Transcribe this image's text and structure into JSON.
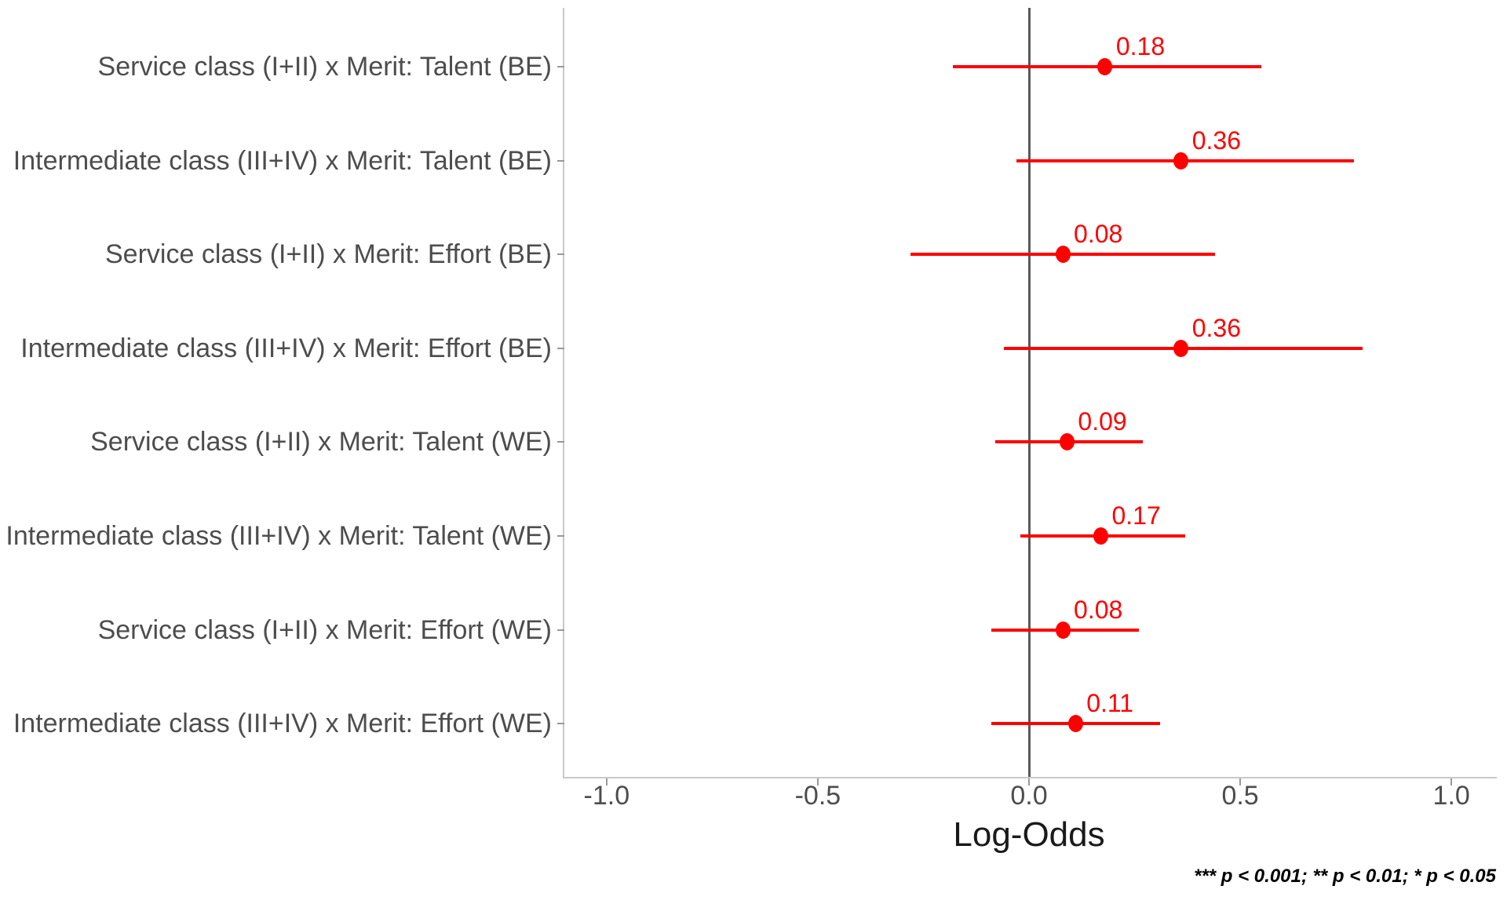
{
  "chart_data": {
    "type": "scatter",
    "subtype": "forest-coefficient-plot",
    "title": "",
    "xlabel": "Log-Odds",
    "ylabel": "",
    "xlim": [
      -1.1,
      1.1
    ],
    "grid": "off",
    "zero_reference_line": 0.0,
    "x_ticks": [
      {
        "value": -1.0,
        "label": "-1.0"
      },
      {
        "value": -0.5,
        "label": "-0.5"
      },
      {
        "value": 0.0,
        "label": "0.0"
      },
      {
        "value": 0.5,
        "label": "0.5"
      },
      {
        "value": 1.0,
        "label": "1.0"
      }
    ],
    "points": [
      {
        "label": "Service class (I+II) x Merit: Talent (BE)",
        "estimate": 0.18,
        "estimate_label": "0.18",
        "ci_low": -0.18,
        "ci_high": 0.55
      },
      {
        "label": "Intermediate class (III+IV) x Merit: Talent (BE)",
        "estimate": 0.36,
        "estimate_label": "0.36",
        "ci_low": -0.03,
        "ci_high": 0.77
      },
      {
        "label": "Service class (I+II) x Merit: Effort (BE)",
        "estimate": 0.08,
        "estimate_label": "0.08",
        "ci_low": -0.28,
        "ci_high": 0.44
      },
      {
        "label": "Intermediate class (III+IV) x Merit: Effort (BE)",
        "estimate": 0.36,
        "estimate_label": "0.36",
        "ci_low": -0.06,
        "ci_high": 0.79
      },
      {
        "label": "Service class (I+II) x Merit: Talent (WE)",
        "estimate": 0.09,
        "estimate_label": "0.09",
        "ci_low": -0.08,
        "ci_high": 0.27
      },
      {
        "label": "Intermediate class (III+IV) x Merit: Talent (WE)",
        "estimate": 0.17,
        "estimate_label": "0.17",
        "ci_low": -0.02,
        "ci_high": 0.37
      },
      {
        "label": "Service class (I+II) x Merit: Effort (WE)",
        "estimate": 0.08,
        "estimate_label": "0.08",
        "ci_low": -0.09,
        "ci_high": 0.26
      },
      {
        "label": "Intermediate class (III+IV) x Merit: Effort (WE)",
        "estimate": 0.11,
        "estimate_label": "0.11",
        "ci_low": -0.09,
        "ci_high": 0.31
      }
    ],
    "footnote": "*** p < 0.001; ** p < 0.01; * p < 0.05",
    "colors": {
      "point": "#FF0000",
      "interval": "#FF0000",
      "estimate_text": "#FF0000",
      "zero_line": "#595959",
      "axis_line": "#c9c9c9",
      "tick_mark": "#999999",
      "axis_text": "#4d4d4d",
      "axis_title_text": "#1a1a1a",
      "footnote_text": "#000000",
      "background": "#ffffff"
    }
  }
}
